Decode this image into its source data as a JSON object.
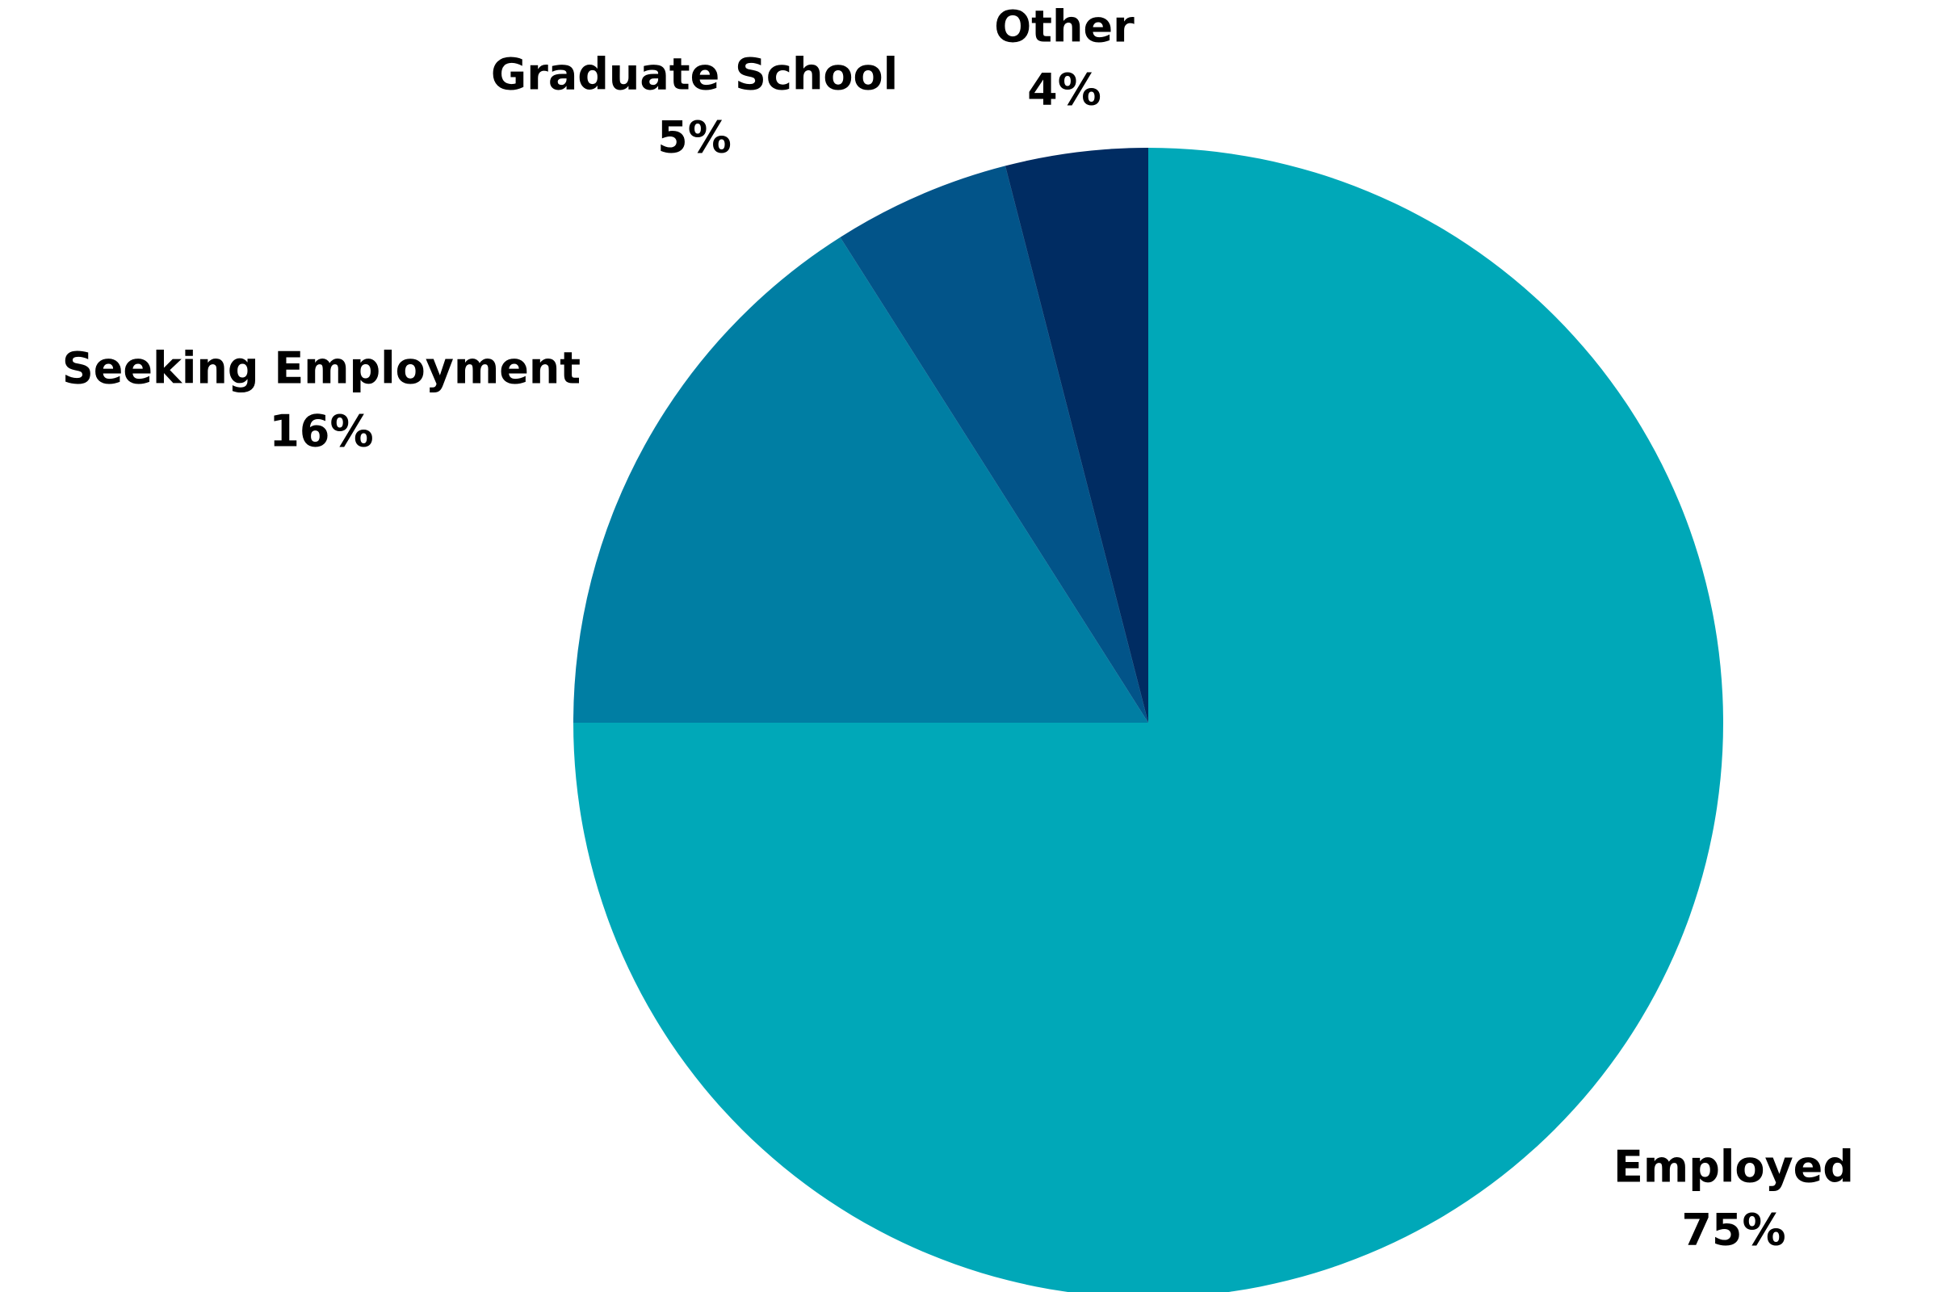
{
  "chart_data": {
    "type": "pie",
    "title": "",
    "start": "top",
    "direction": "clockwise",
    "slices": [
      {
        "label": "Employed",
        "value": 75,
        "display": "75%",
        "color": "#00A8B8"
      },
      {
        "label": "Seeking Employment",
        "value": 16,
        "display": "16%",
        "color": "#007EA3"
      },
      {
        "label": "Graduate School",
        "value": 5,
        "display": "5%",
        "color": "#025489"
      },
      {
        "label": "Other",
        "value": 4,
        "display": "4%",
        "color": "#002C62"
      }
    ]
  }
}
